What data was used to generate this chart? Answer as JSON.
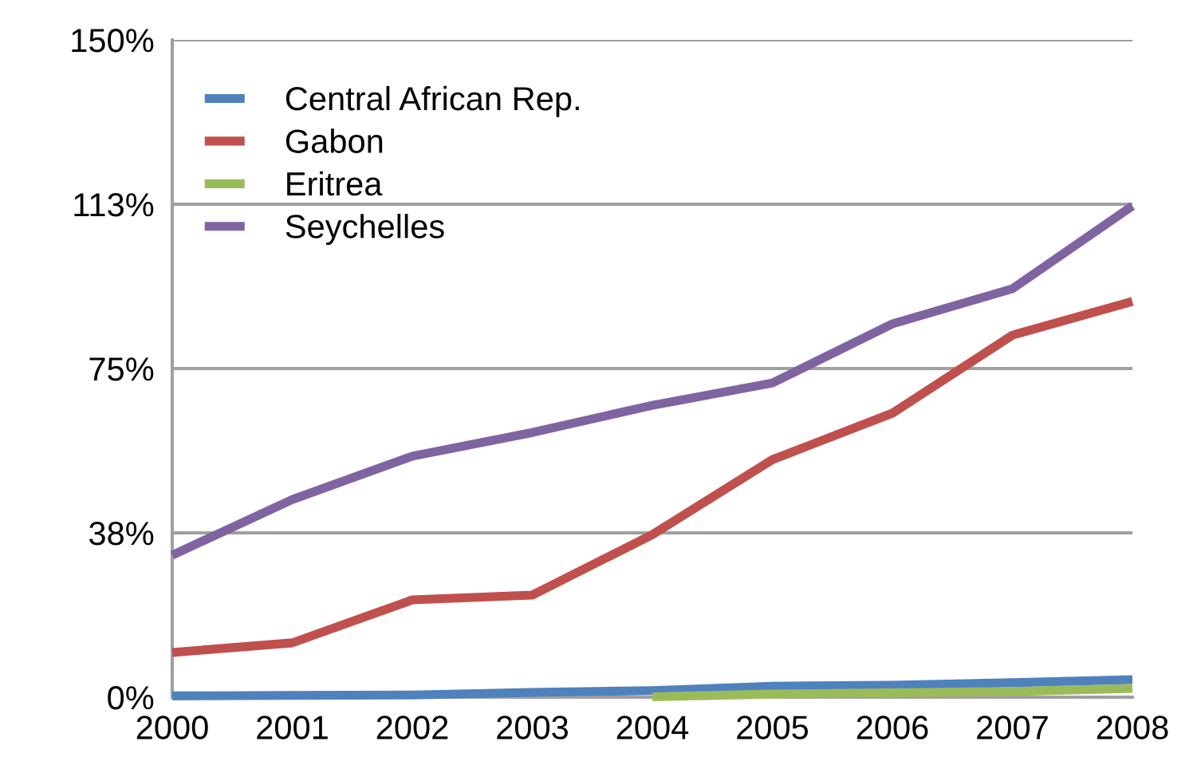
{
  "chart_data": {
    "type": "line",
    "categories": [
      "2000",
      "2001",
      "2002",
      "2003",
      "2004",
      "2005",
      "2006",
      "2007",
      "2008"
    ],
    "series": [
      {
        "name": "Central African Rep.",
        "color": "#4f81bd",
        "values": [
          0.3,
          0.4,
          0.5,
          1.1,
          1.5,
          2.5,
          2.7,
          3.3,
          4.0
        ]
      },
      {
        "name": "Gabon",
        "color": "#c0504d",
        "values": [
          10.2,
          12.4,
          22.2,
          23.3,
          37.1,
          54.2,
          64.8,
          82.6,
          90.3
        ]
      },
      {
        "name": "Eritrea",
        "color": "#9bbb59",
        "values": [
          null,
          null,
          null,
          null,
          0.1,
          0.7,
          1.0,
          1.3,
          2.0
        ]
      },
      {
        "name": "Seychelles",
        "color": "#8064a2",
        "values": [
          32.4,
          45.1,
          55.0,
          60.4,
          66.6,
          71.7,
          85.2,
          93.2,
          112.1
        ]
      }
    ],
    "ylim": [
      0,
      150
    ],
    "yticks": [
      {
        "value": 0,
        "label": "0%"
      },
      {
        "value": 37.5,
        "label": "38%"
      },
      {
        "value": 75,
        "label": "75%"
      },
      {
        "value": 112.5,
        "label": "113%"
      },
      {
        "value": 150,
        "label": "150%"
      }
    ],
    "grid": "y",
    "legend": "top left",
    "marker": "none",
    "line_style": "solid"
  }
}
